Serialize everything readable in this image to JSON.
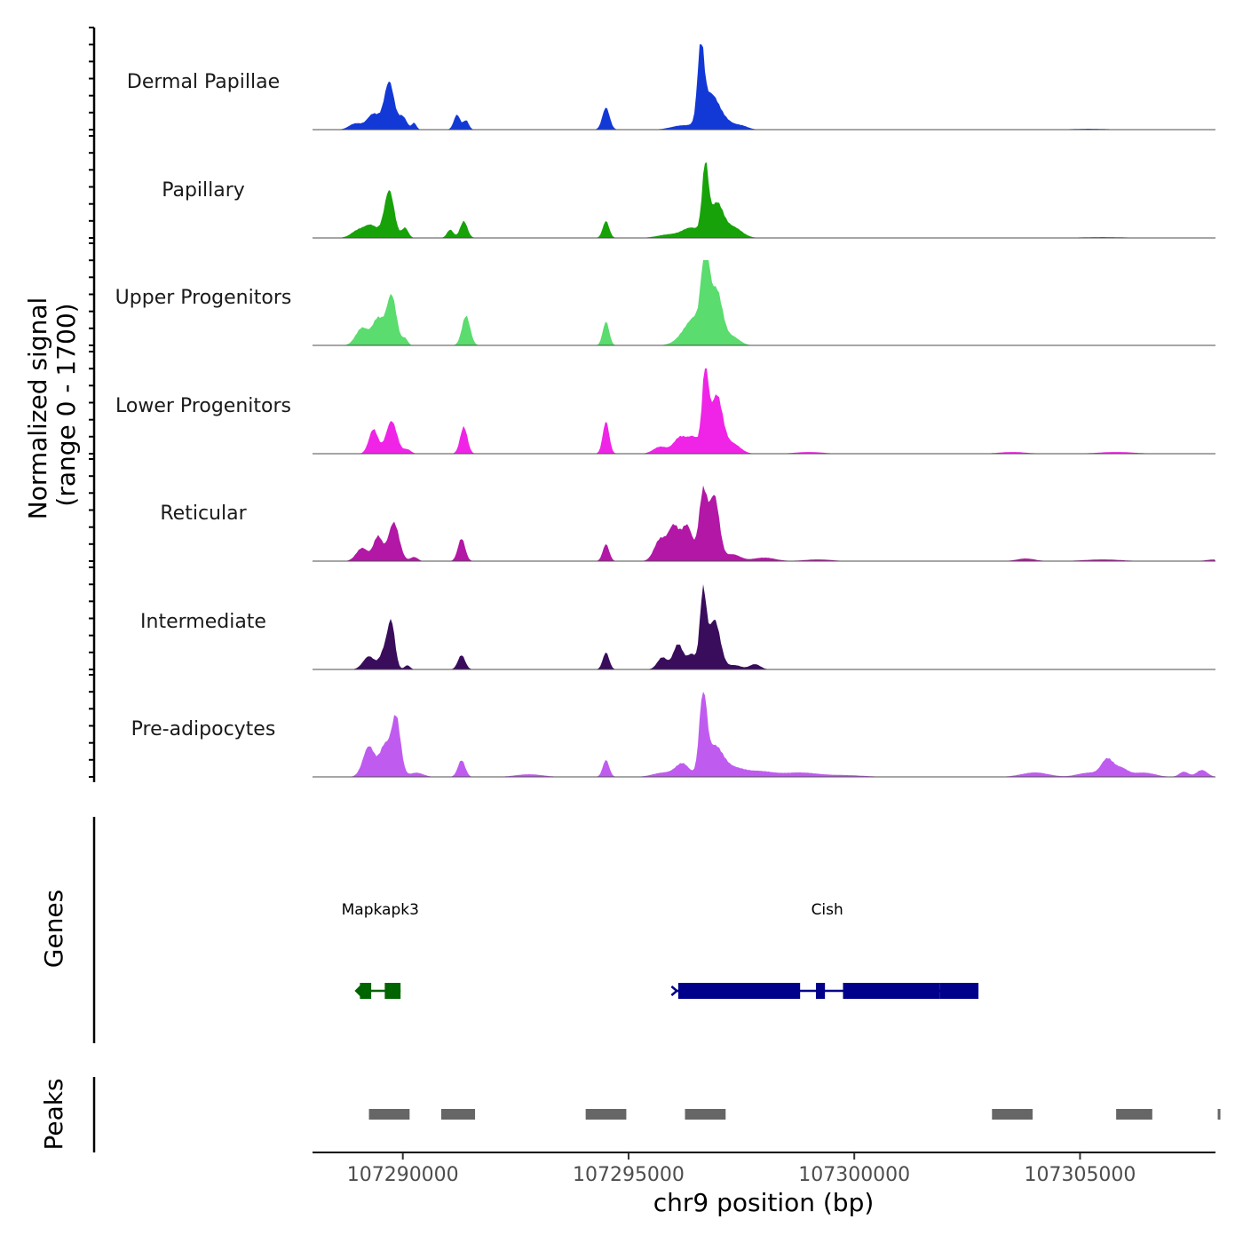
{
  "chart_data": {
    "type": "area",
    "chromosome": "chr9",
    "x_range": [
      107288000,
      107308000
    ],
    "y_range": [
      0,
      1700
    ],
    "ylabel": "Normalized signal",
    "ylabel_range": "(range 0 - 1700)",
    "xlabel": "chr9 position (bp)",
    "x_ticks": [
      {
        "value": 107290000,
        "label": "107290000"
      },
      {
        "value": 107295000,
        "label": "107295000"
      },
      {
        "value": 107300000,
        "label": "107300000"
      },
      {
        "value": 107305000,
        "label": "107305000"
      }
    ],
    "tracks": [
      {
        "name": "Dermal Papillae",
        "color": "#1239D6",
        "peaks": [
          [
            107288950,
            0.07,
            140
          ],
          [
            107289350,
            0.18,
            140
          ],
          [
            107289700,
            0.55,
            110
          ],
          [
            107290000,
            0.15,
            90
          ],
          [
            107290250,
            0.08,
            50
          ],
          [
            107291200,
            0.18,
            70
          ],
          [
            107291400,
            0.11,
            60
          ],
          [
            107294500,
            0.26,
            80
          ],
          [
            107296200,
            0.05,
            250
          ],
          [
            107296600,
            0.88,
            70
          ],
          [
            107296800,
            0.4,
            180
          ],
          [
            107297100,
            0.1,
            200
          ],
          [
            107297500,
            0.04,
            150
          ],
          [
            107305200,
            0.01,
            400
          ]
        ]
      },
      {
        "name": "Papillary",
        "color": "#17A209",
        "peaks": [
          [
            107289000,
            0.08,
            150
          ],
          [
            107289300,
            0.14,
            150
          ],
          [
            107289700,
            0.55,
            110
          ],
          [
            107290050,
            0.12,
            70
          ],
          [
            107291050,
            0.1,
            70
          ],
          [
            107291350,
            0.2,
            80
          ],
          [
            107294500,
            0.2,
            70
          ],
          [
            107295900,
            0.04,
            250
          ],
          [
            107296400,
            0.12,
            200
          ],
          [
            107296700,
            0.82,
            70
          ],
          [
            107296950,
            0.4,
            140
          ],
          [
            107297300,
            0.13,
            200
          ],
          [
            107305500,
            0.01,
            500
          ]
        ]
      },
      {
        "name": "Upper Progenitors",
        "color": "#5ADC6E",
        "peaks": [
          [
            107289100,
            0.2,
            140
          ],
          [
            107289450,
            0.3,
            120
          ],
          [
            107289750,
            0.58,
            110
          ],
          [
            107290050,
            0.08,
            60
          ],
          [
            107291400,
            0.35,
            90
          ],
          [
            107294500,
            0.28,
            70
          ],
          [
            107296500,
            0.35,
            260
          ],
          [
            107296700,
            0.98,
            80
          ],
          [
            107296950,
            0.6,
            130
          ],
          [
            107297300,
            0.1,
            160
          ]
        ]
      },
      {
        "name": "Lower Progenitors",
        "color": "#F024E6",
        "peaks": [
          [
            107289350,
            0.28,
            100
          ],
          [
            107289750,
            0.38,
            120
          ],
          [
            107290100,
            0.05,
            80
          ],
          [
            107291350,
            0.32,
            80
          ],
          [
            107294500,
            0.38,
            70
          ],
          [
            107295700,
            0.08,
            150
          ],
          [
            107296150,
            0.2,
            150
          ],
          [
            107296450,
            0.18,
            120
          ],
          [
            107296700,
            0.97,
            70
          ],
          [
            107296950,
            0.7,
            130
          ],
          [
            107297300,
            0.12,
            170
          ],
          [
            107299000,
            0.02,
            300
          ],
          [
            107303500,
            0.02,
            300
          ],
          [
            107305800,
            0.02,
            400
          ]
        ]
      },
      {
        "name": "Reticular",
        "color": "#B217A5",
        "peaks": [
          [
            107289100,
            0.15,
            130
          ],
          [
            107289450,
            0.28,
            100
          ],
          [
            107289800,
            0.45,
            120
          ],
          [
            107290250,
            0.05,
            80
          ],
          [
            107291300,
            0.27,
            80
          ],
          [
            107294500,
            0.2,
            70
          ],
          [
            107295700,
            0.25,
            130
          ],
          [
            107296000,
            0.4,
            120
          ],
          [
            107296300,
            0.42,
            120
          ],
          [
            107296650,
            0.82,
            90
          ],
          [
            107296900,
            0.78,
            110
          ],
          [
            107297300,
            0.08,
            170
          ],
          [
            107298000,
            0.04,
            250
          ],
          [
            107299200,
            0.02,
            300
          ],
          [
            107303800,
            0.03,
            200
          ],
          [
            107305500,
            0.02,
            400
          ],
          [
            107308000,
            0.02,
            200
          ]
        ]
      },
      {
        "name": "Intermediate",
        "color": "#3A0C5C",
        "peaks": [
          [
            107289250,
            0.15,
            130
          ],
          [
            107289600,
            0.22,
            100
          ],
          [
            107289750,
            0.5,
            80
          ],
          [
            107290100,
            0.05,
            60
          ],
          [
            107291300,
            0.17,
            80
          ],
          [
            107294500,
            0.2,
            70
          ],
          [
            107295750,
            0.14,
            110
          ],
          [
            107296100,
            0.3,
            110
          ],
          [
            107296400,
            0.18,
            100
          ],
          [
            107296650,
            0.9,
            70
          ],
          [
            107296900,
            0.6,
            130
          ],
          [
            107297350,
            0.05,
            150
          ],
          [
            107297800,
            0.06,
            120
          ]
        ]
      },
      {
        "name": "Pre-adipocytes",
        "color": "#C05BF0",
        "peaks": [
          [
            107289250,
            0.35,
            130
          ],
          [
            107289600,
            0.35,
            110
          ],
          [
            107289850,
            0.7,
            100
          ],
          [
            107290300,
            0.05,
            150
          ],
          [
            107291300,
            0.2,
            80
          ],
          [
            107292800,
            0.03,
            300
          ],
          [
            107294500,
            0.2,
            70
          ],
          [
            107295800,
            0.05,
            250
          ],
          [
            107296200,
            0.15,
            150
          ],
          [
            107296650,
            0.95,
            80
          ],
          [
            107296900,
            0.35,
            180
          ],
          [
            107297300,
            0.1,
            250
          ],
          [
            107297900,
            0.06,
            300
          ],
          [
            107298800,
            0.05,
            400
          ],
          [
            107299800,
            0.02,
            400
          ],
          [
            107304000,
            0.05,
            300
          ],
          [
            107305200,
            0.05,
            250
          ],
          [
            107305600,
            0.2,
            130
          ],
          [
            107305900,
            0.1,
            150
          ],
          [
            107306400,
            0.05,
            250
          ],
          [
            107307300,
            0.06,
            100
          ],
          [
            107307700,
            0.08,
            120
          ]
        ]
      }
    ],
    "genes_track_label": "Genes",
    "genes": [
      {
        "name": "Mapkapk3",
        "start": 107289050,
        "end": 107289950,
        "strand": "-",
        "color": "#006400",
        "exons": [
          [
            107289050,
            107289300
          ],
          [
            107289600,
            107289950
          ]
        ]
      },
      {
        "name": "Cish",
        "start": 107296050,
        "end": 107302750,
        "strand": "+",
        "color": "#00008B",
        "exons": [
          [
            107296100,
            107298800
          ],
          [
            107299150,
            107299350
          ],
          [
            107299750,
            107301900
          ],
          [
            107301900,
            107302750
          ]
        ]
      }
    ],
    "peaks_track_label": "Peaks",
    "peak_regions": [
      [
        107289250,
        107290150
      ],
      [
        107290850,
        107291600
      ],
      [
        107294050,
        107294950
      ],
      [
        107296250,
        107297150
      ],
      [
        107303050,
        107303950
      ],
      [
        107305800,
        107306600
      ],
      [
        107308050,
        107308100
      ]
    ]
  }
}
